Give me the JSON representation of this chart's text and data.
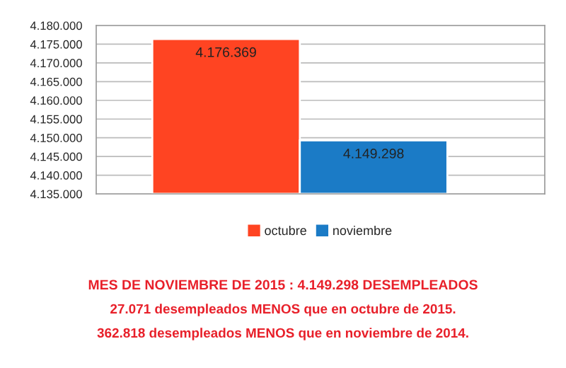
{
  "chart_data": {
    "type": "bar",
    "categories": [
      null,
      null
    ],
    "series": [
      {
        "name": "octubre",
        "color": "#ff4422",
        "values": [
          4176369,
          null
        ],
        "value_labels": [
          "4.176.369",
          null
        ]
      },
      {
        "name": "noviembre",
        "color": "#1b7bc6",
        "values": [
          null,
          4149298
        ],
        "value_labels": [
          null,
          "4.149.298"
        ]
      }
    ],
    "ylim": [
      4135000,
      4180000
    ],
    "yticks": [
      {
        "value": 4135000,
        "label": "4.135.000"
      },
      {
        "value": 4140000,
        "label": "4.140.000"
      },
      {
        "value": 4145000,
        "label": "4.145.000"
      },
      {
        "value": 4150000,
        "label": "4.150.000"
      },
      {
        "value": 4155000,
        "label": "4.155.000"
      },
      {
        "value": 4160000,
        "label": "4.160.000"
      },
      {
        "value": 4165000,
        "label": "4.165.000"
      },
      {
        "value": 4170000,
        "label": "4.170.000"
      },
      {
        "value": 4175000,
        "label": "4.175.000"
      },
      {
        "value": 4180000,
        "label": "4.180.000"
      }
    ],
    "grid": "y",
    "legend": "bottom",
    "annotations": [
      "MES DE NOVIEMBRE DE 2015 : 4.149.298 DESEMPLEADOS",
      "27.071 desempleados MENOS que en octubre de 2015.",
      "362.818 desempleados MENOS que en noviembre de 2014."
    ]
  }
}
